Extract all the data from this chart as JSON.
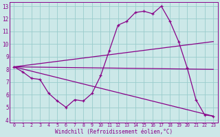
{
  "xlabel": "Windchill (Refroidissement éolien,°C)",
  "bg_color": "#cce8e8",
  "line_color": "#880088",
  "grid_color": "#99cccc",
  "spine_color": "#880088",
  "xlim": [
    -0.5,
    23.5
  ],
  "ylim": [
    3.8,
    13.3
  ],
  "yticks": [
    4,
    5,
    6,
    7,
    8,
    9,
    10,
    11,
    12,
    13
  ],
  "xticks": [
    0,
    1,
    2,
    3,
    4,
    5,
    6,
    7,
    8,
    9,
    10,
    11,
    12,
    13,
    14,
    15,
    16,
    17,
    18,
    19,
    20,
    21,
    22,
    23
  ],
  "curve_x": [
    0,
    1,
    2,
    3,
    4,
    5,
    6,
    7,
    8,
    9,
    10,
    11,
    12,
    13,
    14,
    15,
    16,
    17,
    18,
    19,
    20,
    21,
    22,
    23
  ],
  "curve_y": [
    8.2,
    7.8,
    7.3,
    7.2,
    6.1,
    5.5,
    5.0,
    5.6,
    5.5,
    6.1,
    7.5,
    9.5,
    11.5,
    11.8,
    12.5,
    12.6,
    12.4,
    13.0,
    11.8,
    10.2,
    8.1,
    5.6,
    4.4,
    4.3
  ],
  "trend1_x": [
    0,
    23
  ],
  "trend1_y": [
    8.2,
    4.3
  ],
  "trend2_x": [
    0,
    23
  ],
  "trend2_y": [
    8.2,
    10.2
  ],
  "trend3_x": [
    0,
    23
  ],
  "trend3_y": [
    8.2,
    8.0
  ]
}
